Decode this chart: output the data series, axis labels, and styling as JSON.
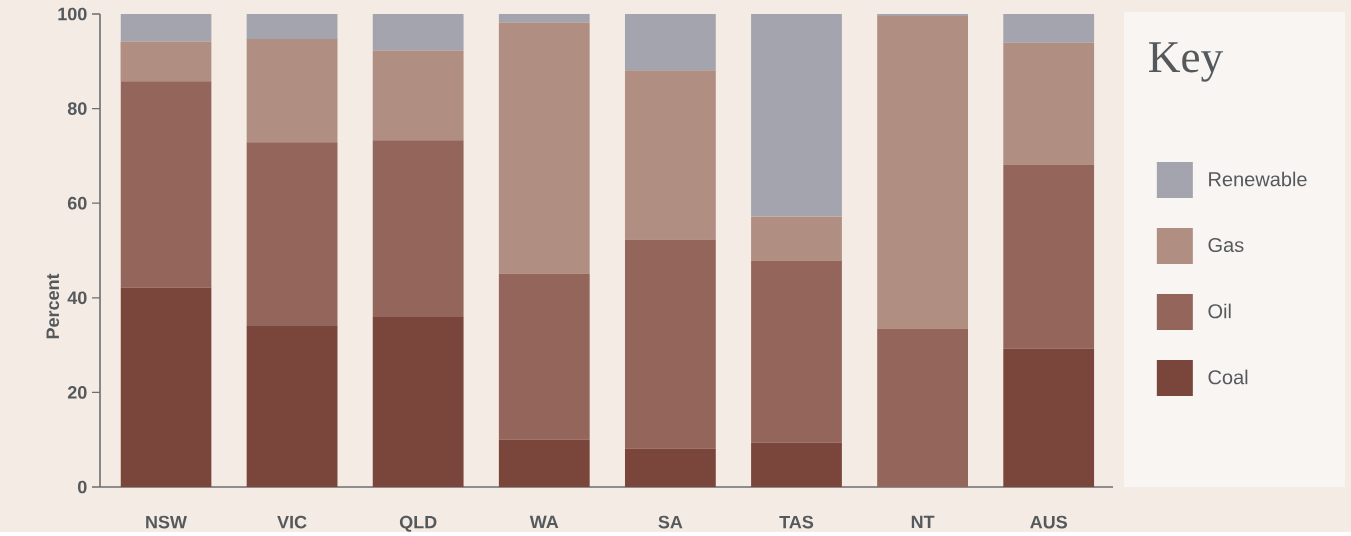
{
  "chart_data": {
    "type": "bar",
    "stacked": true,
    "ylabel": "Percent",
    "legend_title": "Key",
    "legend": "right",
    "categories": [
      "NSW",
      "VIC",
      "QLD",
      "WA",
      "SA",
      "TAS",
      "NT",
      "AUS"
    ],
    "series": [
      {
        "name": "Coal",
        "color": "#7a453b",
        "values": [
          42.2,
          34.2,
          36.1,
          10.0,
          8.1,
          9.4,
          0,
          29.3
        ]
      },
      {
        "name": "Oil",
        "color": "#94655a",
        "values": [
          43.6,
          38.7,
          37.2,
          35.1,
          44.2,
          38.5,
          33.5,
          38.9
        ]
      },
      {
        "name": "Gas",
        "color": "#b08e82",
        "values": [
          8.4,
          21.8,
          19.0,
          53.1,
          35.8,
          9.3,
          66.1,
          25.7
        ]
      },
      {
        "name": "Renewable",
        "color": "#a4a4ae",
        "values": [
          5.8,
          5.3,
          7.7,
          1.8,
          11.9,
          42.8,
          0.4,
          6.1
        ]
      }
    ],
    "ylim": [
      0,
      100
    ],
    "yticks": [
      0,
      20,
      40,
      60,
      80,
      100
    ]
  }
}
